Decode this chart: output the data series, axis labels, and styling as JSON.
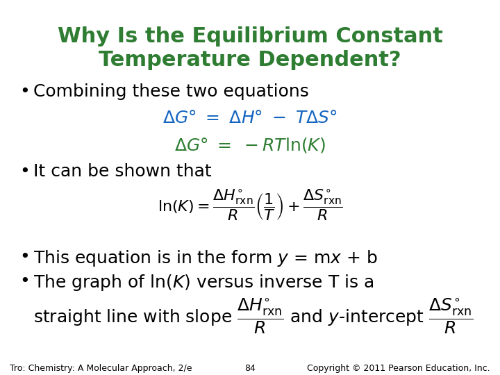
{
  "background_color": "#ffffff",
  "title_line1": "Why Is the Equilibrium Constant",
  "title_line2": "Temperature Dependent?",
  "title_color": "#2e7d32",
  "title_fontsize": 22,
  "bullet_fontsize": 18,
  "bullet_color": "#000000",
  "eq1_color": "#1565c0",
  "eq2_color": "#2e7d32",
  "eq_fontsize": 18,
  "big_eq_fontsize": 16,
  "big_eq_color": "#000000",
  "footer_left": "Tro: Chemistry: A Molecular Approach, 2/e",
  "footer_center": "84",
  "footer_right": "Copyright © 2011 Pearson Education, Inc.",
  "footer_color": "#000000",
  "footer_fontsize": 9
}
